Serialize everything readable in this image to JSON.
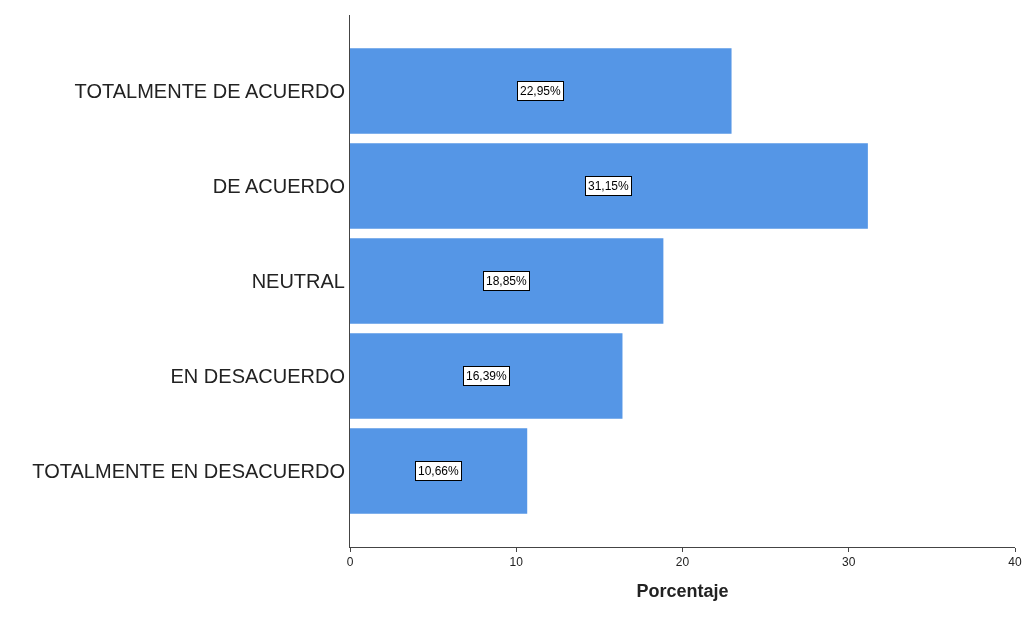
{
  "chart_data": {
    "type": "bar",
    "orientation": "horizontal",
    "categories": [
      "TOTALMENTE DE ACUERDO",
      "DE ACUERDO",
      "NEUTRAL",
      "EN DESACUERDO",
      "TOTALMENTE EN DESACUERDO"
    ],
    "values": [
      22.95,
      31.15,
      18.85,
      16.39,
      10.66
    ],
    "value_labels": [
      "22,95%",
      "31,15%",
      "18,85%",
      "16,39%",
      "10,66%"
    ],
    "color": "#5596e6",
    "xlabel": "Porcentaje",
    "xlim": [
      0,
      40
    ],
    "xticks": [
      0,
      10,
      20,
      30,
      40
    ],
    "legend": false
  }
}
